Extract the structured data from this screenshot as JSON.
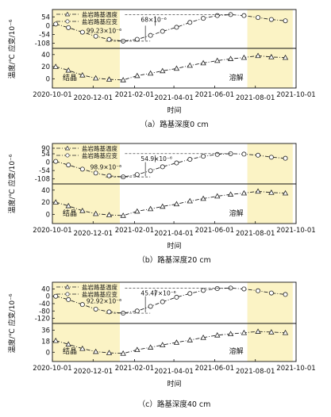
{
  "chart_data": [
    {
      "type": "line",
      "caption": "（a）路基深度0 cm",
      "xlabel": "时间",
      "ylabel": "温度/℃ 应变/10⁻⁶",
      "x_ticks_top_row": [
        "2020-10-01",
        "2021-02-01",
        "2021-06-01",
        "2021-10-01"
      ],
      "x_ticks_bottom_row": [
        "2020-12-01",
        "2021-04-01",
        "2021-08-01"
      ],
      "shaded_periods": [
        {
          "label": "结晶",
          "start": "2020-10-01",
          "end": "2021-01-10"
        },
        {
          "label": "溶解",
          "start": "2021-07-20",
          "end": "2021-09-26"
        }
      ],
      "strain_axis": {
        "ticks": [
          "54",
          "0",
          "-54",
          "-108"
        ],
        "ylim": [
          -125,
          75
        ]
      },
      "temp_axis": {
        "ticks": [
          "40",
          "20",
          "0"
        ],
        "ylim": [
          -10,
          45
        ]
      },
      "annotations": [
        "68×10⁻⁶",
        "99.23×10⁻⁶"
      ],
      "series": [
        {
          "name": "盐岩路基温度",
          "marker": "triangle",
          "x": [
            "2020-10-06",
            "2020-10-25",
            "2020-11-15",
            "2020-12-05",
            "2020-12-25",
            "2021-01-15",
            "2021-02-05",
            "2021-02-25",
            "2021-03-15",
            "2021-04-05",
            "2021-04-25",
            "2021-05-15",
            "2021-06-05",
            "2021-06-25",
            "2021-07-15",
            "2021-08-05",
            "2021-08-25",
            "2021-09-15"
          ],
          "values": [
            20,
            14,
            6,
            1,
            -1,
            -2,
            5,
            9,
            13,
            17,
            22,
            26,
            30,
            33,
            35,
            38,
            36,
            35
          ]
        },
        {
          "name": "盐岩路基应变",
          "marker": "circle",
          "x": [
            "2020-10-06",
            "2020-10-25",
            "2020-11-15",
            "2020-12-05",
            "2020-12-25",
            "2021-01-15",
            "2021-02-05",
            "2021-02-25",
            "2021-03-15",
            "2021-04-05",
            "2021-04-25",
            "2021-05-15",
            "2021-06-05",
            "2021-06-25",
            "2021-07-15",
            "2021-08-05",
            "2021-08-25",
            "2021-09-15"
          ],
          "values": [
            10,
            -12,
            -40,
            -65,
            -85,
            -95,
            -84,
            -60,
            -35,
            -10,
            20,
            45,
            62,
            68,
            62,
            50,
            38,
            30
          ]
        }
      ]
    },
    {
      "type": "line",
      "caption": "（b）路基深度20 cm",
      "xlabel": "时间",
      "ylabel": "温度/℃ 应变/10⁻⁶",
      "x_ticks_top_row": [
        "2020-10-01",
        "2021-02-01",
        "2021-06-01",
        "2021-10-01"
      ],
      "x_ticks_bottom_row": [
        "2020-12-01",
        "2021-04-01",
        "2021-08-01"
      ],
      "shaded_periods": [
        {
          "label": "结晶",
          "start": "2020-10-01",
          "end": "2021-01-10"
        },
        {
          "label": "溶解",
          "start": "2021-07-20",
          "end": "2021-09-26"
        }
      ],
      "strain_axis": {
        "ticks": [
          "90",
          "54",
          "0",
          "-54",
          "-108"
        ],
        "ylim": [
          -125,
          95
        ]
      },
      "temp_axis": {
        "ticks": [
          "40",
          "20",
          "0"
        ],
        "ylim": [
          -10,
          45
        ]
      },
      "annotations": [
        "54.9×10⁻⁶",
        "98.9×10⁻⁶"
      ],
      "series": [
        {
          "name": "盐岩路基温度",
          "marker": "triangle",
          "x": [
            "2020-10-06",
            "2020-10-25",
            "2020-11-15",
            "2020-12-05",
            "2020-12-25",
            "2021-01-15",
            "2021-02-05",
            "2021-02-25",
            "2021-03-15",
            "2021-04-05",
            "2021-04-25",
            "2021-05-15",
            "2021-06-05",
            "2021-06-25",
            "2021-07-15",
            "2021-08-05",
            "2021-08-25",
            "2021-09-15"
          ],
          "values": [
            20,
            14,
            6,
            1,
            -1,
            -2,
            5,
            9,
            13,
            17,
            22,
            26,
            30,
            33,
            35,
            38,
            36,
            35
          ]
        },
        {
          "name": "盐岩路基应变",
          "marker": "circle",
          "x": [
            "2020-10-06",
            "2020-10-25",
            "2020-11-15",
            "2020-12-05",
            "2020-12-25",
            "2021-01-15",
            "2021-02-05",
            "2021-02-25",
            "2021-03-15",
            "2021-04-05",
            "2021-04-25",
            "2021-05-15",
            "2021-06-05",
            "2021-06-25",
            "2021-07-15",
            "2021-08-05",
            "2021-08-25",
            "2021-09-15"
          ],
          "values": [
            5,
            -18,
            -45,
            -70,
            -88,
            -95,
            -80,
            -55,
            -30,
            -5,
            18,
            38,
            50,
            55,
            52,
            45,
            32,
            25
          ]
        }
      ]
    },
    {
      "type": "line",
      "caption": "（c）路基深度40 cm",
      "xlabel": "时间",
      "ylabel": "温度/℃ 应变/10⁻⁶",
      "x_ticks_top_row": [
        "2020-10-01",
        "2021-02-01",
        "2021-06-01",
        "2021-10-01"
      ],
      "x_ticks_bottom_row": [
        "2020-12-01",
        "2021-04-01",
        "2021-08-01"
      ],
      "shaded_periods": [
        {
          "label": "结晶",
          "start": "2020-10-01",
          "end": "2021-01-10"
        },
        {
          "label": "溶解",
          "start": "2021-07-20",
          "end": "2021-09-26"
        }
      ],
      "strain_axis": {
        "ticks": [
          "40",
          "0",
          "-40",
          "-80",
          "-120"
        ],
        "ylim": [
          -135,
          55
        ]
      },
      "temp_axis": {
        "ticks": [
          "36",
          "18",
          "0"
        ],
        "ylim": [
          -10,
          42
        ]
      },
      "annotations": [
        "45.47×10⁻⁶",
        "92.92×10⁻⁶"
      ],
      "series": [
        {
          "name": "盐岩路基温度",
          "marker": "triangle",
          "x": [
            "2020-10-06",
            "2020-10-25",
            "2020-11-15",
            "2020-12-05",
            "2020-12-25",
            "2021-01-15",
            "2021-02-05",
            "2021-02-25",
            "2021-03-15",
            "2021-04-05",
            "2021-04-25",
            "2021-05-15",
            "2021-06-05",
            "2021-06-25",
            "2021-07-15",
            "2021-08-05",
            "2021-08-25",
            "2021-09-15"
          ],
          "values": [
            19,
            13,
            6,
            1,
            -1,
            -2,
            4,
            8,
            12,
            16,
            20,
            24,
            28,
            30,
            32,
            34,
            33,
            32
          ]
        },
        {
          "name": "盐岩路基应变",
          "marker": "circle",
          "x": [
            "2020-10-06",
            "2020-10-25",
            "2020-11-15",
            "2020-12-05",
            "2020-12-25",
            "2021-01-15",
            "2021-02-05",
            "2021-02-25",
            "2021-03-15",
            "2021-04-05",
            "2021-04-25",
            "2021-05-15",
            "2021-06-05",
            "2021-06-25",
            "2021-07-15",
            "2021-08-05",
            "2021-08-25",
            "2021-09-15"
          ],
          "values": [
            0,
            -18,
            -45,
            -70,
            -85,
            -92,
            -80,
            -55,
            -30,
            -5,
            15,
            32,
            42,
            45,
            40,
            30,
            18,
            10
          ]
        }
      ]
    }
  ]
}
